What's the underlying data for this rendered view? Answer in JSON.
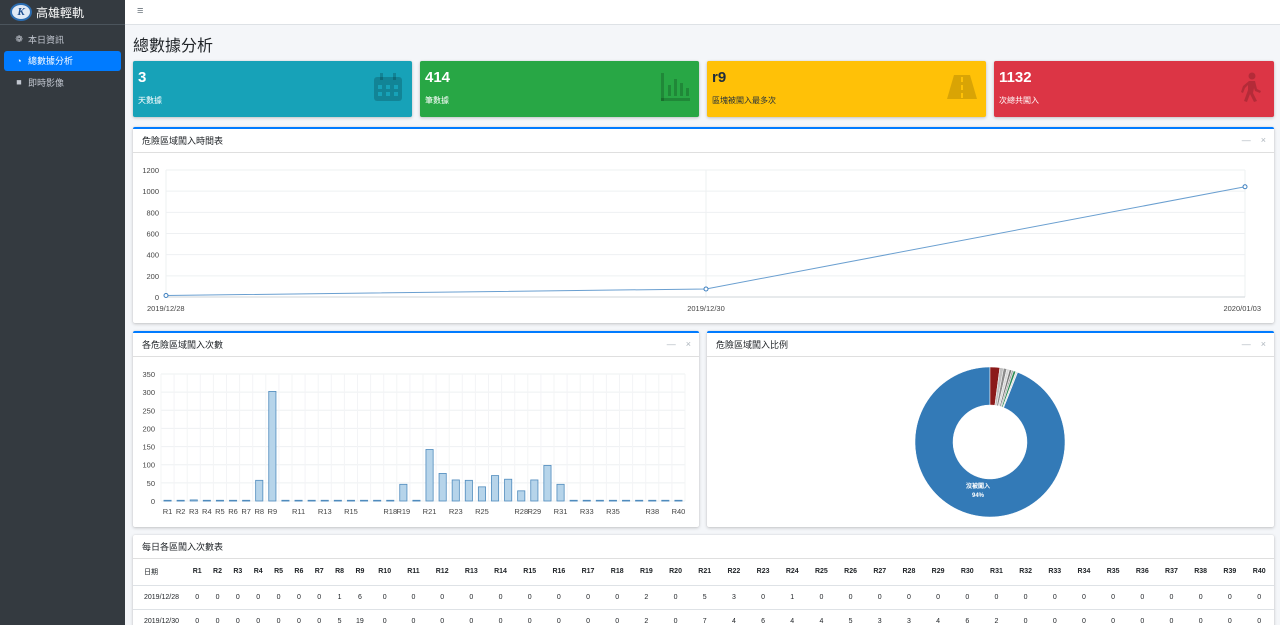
{
  "brand": {
    "logo_letter": "K",
    "name": "高雄輕軌"
  },
  "nav": [
    {
      "icon": "dashboard-icon",
      "glyph": "❁",
      "label": "本日資訊",
      "active": false
    },
    {
      "icon": "pie-chart-icon",
      "glyph": "◔",
      "label": "總數據分析",
      "active": true
    },
    {
      "icon": "video-camera-icon",
      "glyph": "■",
      "label": "即時影像",
      "active": false
    }
  ],
  "topbar": {
    "menu_glyph": "≡"
  },
  "page": {
    "title": "總數據分析"
  },
  "stats": [
    {
      "value": "3",
      "label": "天數據",
      "color": "#17a2b8",
      "icon": "calendar-icon"
    },
    {
      "value": "414",
      "label": "筆數據",
      "color": "#28a745",
      "icon": "bar-chart-icon"
    },
    {
      "value": "r9",
      "label": "區塊被闖入最多次",
      "color": "#ffc107",
      "icon": "road-icon"
    },
    {
      "value": "1132",
      "label": "次總共闖入",
      "color": "#dc3545",
      "icon": "walking-icon"
    }
  ],
  "timeline_card": {
    "title": "危險區域闖入時間表",
    "collapse_glyph": "—",
    "close_glyph": "×",
    "chart_data": {
      "type": "line",
      "x": [
        "2019/12/28",
        "2019/12/30",
        "2020/01/03"
      ],
      "values": [
        14,
        76,
        1042
      ],
      "ylim": [
        0,
        1200
      ],
      "yticks": [
        0,
        200,
        400,
        600,
        800,
        1000,
        1200
      ],
      "color": "#6a9fd0"
    }
  },
  "bar_card": {
    "title": "各危險區域闖入次數",
    "collapse_glyph": "—",
    "close_glyph": "×",
    "chart_data": {
      "type": "bar",
      "categories": [
        "R1",
        "R2",
        "R3",
        "R4",
        "R5",
        "R6",
        "R7",
        "R8",
        "R9",
        "R10",
        "R11",
        "R12",
        "R13",
        "R14",
        "R15",
        "R16",
        "R17",
        "R18",
        "R19",
        "R20",
        "R21",
        "R22",
        "R23",
        "R24",
        "R25",
        "R26",
        "R27",
        "R28",
        "R29",
        "R30",
        "R31",
        "R32",
        "R33",
        "R34",
        "R35",
        "R36",
        "R37",
        "R38",
        "R39",
        "R40"
      ],
      "tick_labels": [
        "R1",
        "R2",
        "R3",
        "R4",
        "R5",
        "R6",
        "R7",
        "R8",
        "R9",
        "R11",
        "R13",
        "R15",
        "R18",
        "R19",
        "R21",
        "R23",
        "R25",
        "R28",
        "R29",
        "R31",
        "R33",
        "R35",
        "R38",
        "R40"
      ],
      "values": [
        2,
        2,
        3,
        2,
        2,
        2,
        2,
        57,
        302,
        2,
        2,
        2,
        2,
        2,
        2,
        2,
        2,
        2,
        46,
        2,
        142,
        76,
        58,
        57,
        39,
        70,
        60,
        28,
        58,
        98,
        46,
        2,
        2,
        2,
        2,
        2,
        2,
        2,
        2,
        2
      ],
      "ylim": [
        0,
        350
      ],
      "yticks": [
        0,
        50,
        100,
        150,
        200,
        250,
        300,
        350
      ],
      "fill": "#b6d4ea",
      "stroke": "#4f8bbd"
    }
  },
  "pie_card": {
    "title": "危險區域闖入比例",
    "collapse_glyph": "—",
    "close_glyph": "×",
    "chart_data": {
      "type": "pie",
      "slices": [
        {
          "label": "沒被闖入",
          "percent": "94%",
          "value": 94.0,
          "color": "#337ab7"
        },
        {
          "label": "",
          "value": 2.1,
          "color": "#8b1a1a"
        },
        {
          "label": "",
          "value": 0.8,
          "color": "#c0c0c0"
        },
        {
          "label": "",
          "value": 0.7,
          "color": "#8c8c8c"
        },
        {
          "label": "",
          "value": 0.6,
          "color": "#d9d9d9"
        },
        {
          "label": "",
          "value": 0.5,
          "color": "#7a7a7a"
        },
        {
          "label": "",
          "value": 0.4,
          "color": "#a9a9a9"
        },
        {
          "label": "",
          "value": 0.5,
          "color": "#2e8b57"
        },
        {
          "label": "",
          "value": 0.4,
          "color": "#e0e0e0"
        }
      ]
    }
  },
  "table_card": {
    "title": "每日各區闖入次數表",
    "headers": [
      "日期",
      "R1",
      "R2",
      "R3",
      "R4",
      "R5",
      "R6",
      "R7",
      "R8",
      "R9",
      "R10",
      "R11",
      "R12",
      "R13",
      "R14",
      "R15",
      "R16",
      "R17",
      "R18",
      "R19",
      "R20",
      "R21",
      "R22",
      "R23",
      "R24",
      "R25",
      "R26",
      "R27",
      "R28",
      "R29",
      "R30",
      "R31",
      "R32",
      "R33",
      "R34",
      "R35",
      "R36",
      "R37",
      "R38",
      "R39",
      "R40"
    ],
    "rows": [
      [
        "2019/12/28",
        "0",
        "0",
        "0",
        "0",
        "0",
        "0",
        "0",
        "1",
        "6",
        "0",
        "0",
        "0",
        "0",
        "0",
        "0",
        "0",
        "0",
        "0",
        "2",
        "0",
        "5",
        "3",
        "0",
        "1",
        "0",
        "0",
        "0",
        "0",
        "0",
        "0",
        "0",
        "0",
        "0",
        "0",
        "0",
        "0",
        "0",
        "0",
        "0",
        "0"
      ],
      [
        "2019/12/30",
        "0",
        "0",
        "0",
        "0",
        "0",
        "0",
        "0",
        "5",
        "19",
        "0",
        "0",
        "0",
        "0",
        "0",
        "0",
        "0",
        "0",
        "0",
        "2",
        "0",
        "7",
        "4",
        "6",
        "4",
        "4",
        "5",
        "3",
        "3",
        "4",
        "6",
        "2",
        "0",
        "0",
        "0",
        "0",
        "0",
        "0",
        "0",
        "0",
        "0"
      ]
    ]
  }
}
